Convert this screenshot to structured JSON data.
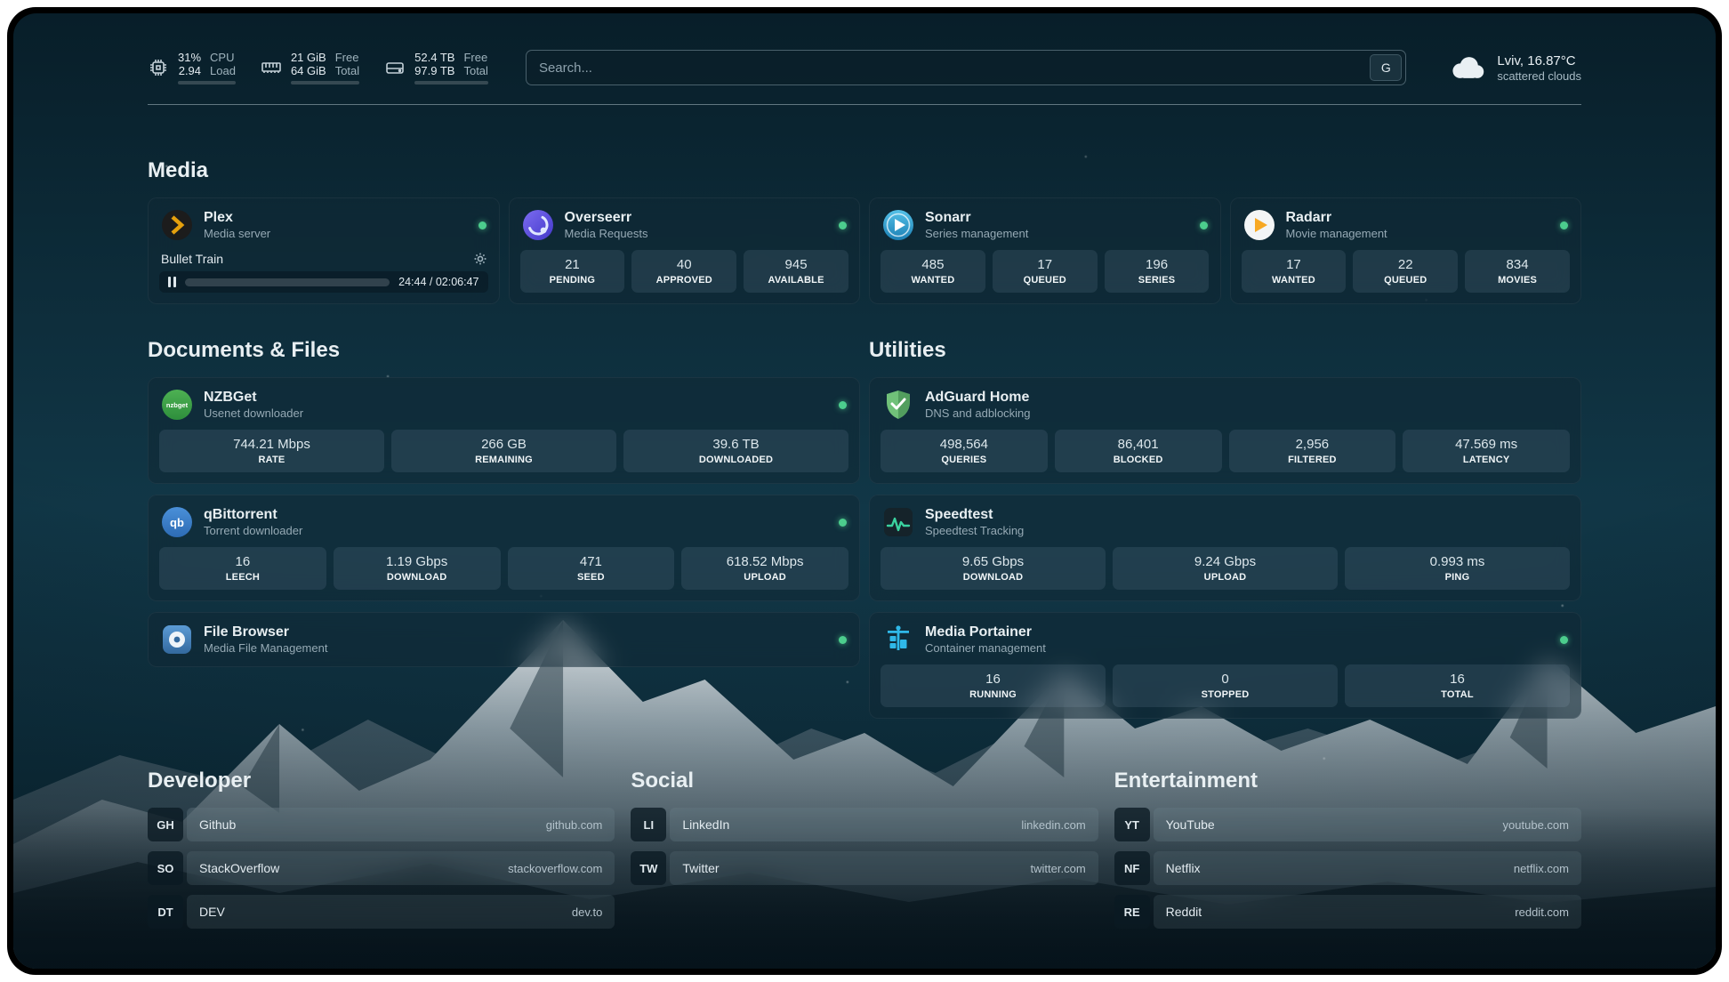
{
  "topbar": {
    "cpu": {
      "line1": "31%",
      "line2": "2.94",
      "label1": "CPU",
      "label2": "Load",
      "percent": 31
    },
    "ram": {
      "line1": "21 GiB",
      "line2": "64 GiB",
      "label1": "Free",
      "label2": "Total",
      "percent": 67
    },
    "disk": {
      "line1": "52.4 TB",
      "line2": "97.9 TB",
      "label1": "Free",
      "label2": "Total",
      "percent": 46
    },
    "search": {
      "placeholder": "Search...",
      "engine_button": "G",
      "value": ""
    },
    "weather": {
      "location": "Lviv, 16.87°C",
      "condition": "scattered clouds"
    }
  },
  "sections": {
    "media": {
      "title": "Media",
      "apps": [
        {
          "name": "Plex",
          "subtitle": "Media server",
          "online": true,
          "player": {
            "title": "Bullet Train",
            "time": "24:44 / 02:06:47",
            "progress_percent": 19.5
          }
        },
        {
          "name": "Overseerr",
          "subtitle": "Media Requests",
          "online": true,
          "stats": [
            {
              "value": "21",
              "label": "PENDING"
            },
            {
              "value": "40",
              "label": "APPROVED"
            },
            {
              "value": "945",
              "label": "AVAILABLE"
            }
          ]
        },
        {
          "name": "Sonarr",
          "subtitle": "Series management",
          "online": true,
          "stats": [
            {
              "value": "485",
              "label": "WANTED"
            },
            {
              "value": "17",
              "label": "QUEUED"
            },
            {
              "value": "196",
              "label": "SERIES"
            }
          ]
        },
        {
          "name": "Radarr",
          "subtitle": "Movie management",
          "online": true,
          "stats": [
            {
              "value": "17",
              "label": "WANTED"
            },
            {
              "value": "22",
              "label": "QUEUED"
            },
            {
              "value": "834",
              "label": "MOVIES"
            }
          ]
        }
      ]
    },
    "documents": {
      "title": "Documents & Files",
      "apps": [
        {
          "name": "NZBGet",
          "subtitle": "Usenet downloader",
          "online": true,
          "stats": [
            {
              "value": "744.21 Mbps",
              "label": "RATE"
            },
            {
              "value": "266 GB",
              "label": "REMAINING"
            },
            {
              "value": "39.6 TB",
              "label": "DOWNLOADED"
            }
          ]
        },
        {
          "name": "qBittorrent",
          "subtitle": "Torrent downloader",
          "online": true,
          "stats": [
            {
              "value": "16",
              "label": "LEECH"
            },
            {
              "value": "1.19 Gbps",
              "label": "DOWNLOAD"
            },
            {
              "value": "471",
              "label": "SEED"
            },
            {
              "value": "618.52 Mbps",
              "label": "UPLOAD"
            }
          ]
        },
        {
          "name": "File Browser",
          "subtitle": "Media File Management",
          "online": true,
          "stats": []
        }
      ]
    },
    "utilities": {
      "title": "Utilities",
      "apps": [
        {
          "name": "AdGuard Home",
          "subtitle": "DNS and adblocking",
          "online": false,
          "stats": [
            {
              "value": "498,564",
              "label": "QUERIES"
            },
            {
              "value": "86,401",
              "label": "BLOCKED"
            },
            {
              "value": "2,956",
              "label": "FILTERED"
            },
            {
              "value": "47.569 ms",
              "label": "LATENCY"
            }
          ]
        },
        {
          "name": "Speedtest",
          "subtitle": "Speedtest Tracking",
          "online": false,
          "stats": [
            {
              "value": "9.65 Gbps",
              "label": "DOWNLOAD"
            },
            {
              "value": "9.24 Gbps",
              "label": "UPLOAD"
            },
            {
              "value": "0.993 ms",
              "label": "PING"
            }
          ]
        },
        {
          "name": "Media Portainer",
          "subtitle": "Container management",
          "online": true,
          "stats": [
            {
              "value": "16",
              "label": "RUNNING"
            },
            {
              "value": "0",
              "label": "STOPPED"
            },
            {
              "value": "16",
              "label": "TOTAL"
            }
          ]
        }
      ]
    },
    "developer": {
      "title": "Developer",
      "bookmarks": [
        {
          "abbr": "GH",
          "name": "Github",
          "url": "github.com"
        },
        {
          "abbr": "SO",
          "name": "StackOverflow",
          "url": "stackoverflow.com"
        },
        {
          "abbr": "DT",
          "name": "DEV",
          "url": "dev.to"
        }
      ]
    },
    "social": {
      "title": "Social",
      "bookmarks": [
        {
          "abbr": "LI",
          "name": "LinkedIn",
          "url": "linkedin.com"
        },
        {
          "abbr": "TW",
          "name": "Twitter",
          "url": "twitter.com"
        }
      ]
    },
    "entertainment": {
      "title": "Entertainment",
      "bookmarks": [
        {
          "abbr": "YT",
          "name": "YouTube",
          "url": "youtube.com"
        },
        {
          "abbr": "NF",
          "name": "Netflix",
          "url": "netflix.com"
        },
        {
          "abbr": "RE",
          "name": "Reddit",
          "url": "reddit.com"
        }
      ]
    }
  },
  "colors": {
    "status_online": "#4ccd8d",
    "plex_accent": "#e5a00d"
  }
}
